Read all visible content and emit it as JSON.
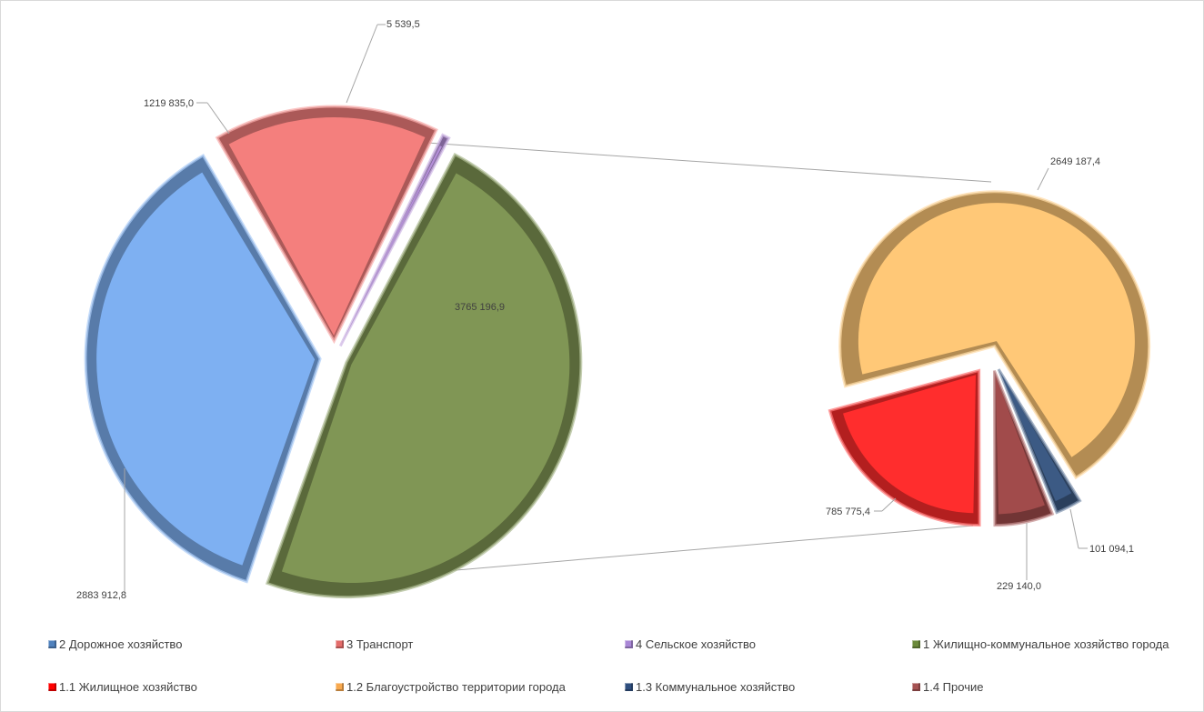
{
  "chart_data": {
    "type": "pie",
    "main_pie": {
      "slices": [
        {
          "key": "2",
          "name": "2 Дорожное хозяйство",
          "value": 2883912.8,
          "label": "2883 912,8",
          "color": "#7EB0F2"
        },
        {
          "key": "3",
          "name": "3 Транспорт",
          "value": 1219835.0,
          "label": "1219 835,0",
          "color": "#F47F7D"
        },
        {
          "key": "4",
          "name": "4 Сельское хозяйство",
          "value": 5539.5,
          "label": "5 539,5",
          "color": "#B48FD8"
        },
        {
          "key": "1",
          "name": "1 Жилищно-коммунальное  хозяйство города",
          "value": 3765196.9,
          "label": "3765 196,9",
          "color": "#809655"
        }
      ]
    },
    "secondary_pie": {
      "parent": "1 Жилищно-коммунальное  хозяйство города",
      "slices": [
        {
          "key": "1.1",
          "name": "1.1 Жилищное хозяйство",
          "value": 785775.4,
          "label": "785 775,4",
          "color": "#FF2D2D"
        },
        {
          "key": "1.2",
          "name": "1.2 Благоустройство территории города",
          "value": 2649187.4,
          "label": "2649 187,4",
          "color": "#FFC877"
        },
        {
          "key": "1.3",
          "name": "1.3 Коммунальное хозяйство",
          "value": 101094.1,
          "label": "101 094,1",
          "color": "#3C5A84"
        },
        {
          "key": "1.4",
          "name": "1.4 Прочие",
          "value": 229140.0,
          "label": "229 140,0",
          "color": "#A14B4B"
        }
      ]
    },
    "legend": {
      "placement": "bottom",
      "items": [
        {
          "label": "2 Дорожное хозяйство",
          "color": "#4F81BD"
        },
        {
          "label": "3 Транспорт",
          "color": "#E36C6A"
        },
        {
          "label": "4 Сельское хозяйство",
          "color": "#A987D6"
        },
        {
          "label": "1 Жилищно-коммунальное  хозяйство города",
          "color": "#6B8A3A"
        },
        {
          "label": "1.1 Жилищное хозяйство",
          "color": "#FF0000"
        },
        {
          "label": "1.2 Благоустройство территории города",
          "color": "#F8A94F"
        },
        {
          "label": "1.3 Коммунальное хозяйство",
          "color": "#2F4F7F"
        },
        {
          "label": "1.4 Прочие",
          "color": "#A65353"
        }
      ]
    }
  }
}
